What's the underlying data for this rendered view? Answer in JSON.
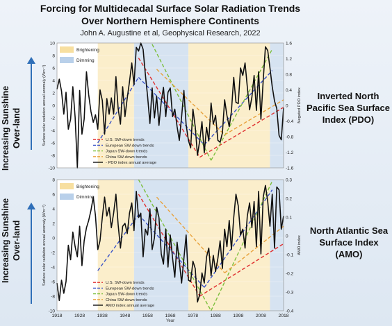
{
  "title_line1": "Forcing for Multidecadal Surface Solar Radiation Trends",
  "title_line2": "Over Northern Hemisphere Continents",
  "subtitle": "John A. Augustine et al, Geophysical Research, 2022",
  "left_label_top": "Increasing Sunshine Over-land",
  "left_label_bottom": "Increasing Sunshine Over-land",
  "right_label_top": [
    "Inverted North",
    "Pacific Sea Surface",
    "Index (PDO)"
  ],
  "right_label_bottom": [
    "North Atlantic Sea",
    "Surface Index",
    "(AMO)"
  ],
  "colors": {
    "brightening": "#fbeecb",
    "dimming": "#d6e3f1",
    "us": "#e03030",
    "europe": "#3a53c8",
    "japan": "#7cbf3c",
    "china": "#e8a23c",
    "index": "#111111"
  },
  "chart_data": [
    {
      "type": "line",
      "name": "pdo-panel",
      "ylabel": "Surface solar radiation annual anomaly (Wm⁻²)",
      "y2label": "Negated PDO index",
      "ylim": [
        -10,
        10
      ],
      "y2lim": [
        -1.6,
        1.6
      ],
      "yticks": [
        "-10",
        "-8",
        "-6",
        "-4",
        "-2",
        "0",
        "2",
        "4",
        "6",
        "8",
        "10"
      ],
      "y2ticks": [
        "-1.6",
        "-1.2",
        "-0.8",
        "-0.4",
        "0",
        "0.4",
        "0.8",
        "1.2",
        "1.6"
      ],
      "shading": [
        {
          "label": "Brightening",
          "from": 1936,
          "to": 1952,
          "kind": "brightening"
        },
        {
          "label": "Dimming",
          "from": 1952,
          "to": 1976,
          "kind": "dimming"
        },
        {
          "label": "",
          "from": 1976,
          "to": 2012,
          "kind": "brightening"
        },
        {
          "label": "",
          "from": 2012,
          "to": 2018,
          "kind": "dimming"
        }
      ],
      "legend": [
        "U.S. SW-down trends",
        "European SW-down trends",
        "Japan SW-down trends",
        "China SW-down trends",
        "- PDO index annual average"
      ],
      "index_series": {
        "x": [
          1918,
          1919,
          1920,
          1921,
          1922,
          1923,
          1924,
          1925,
          1926,
          1927,
          1928,
          1929,
          1930,
          1931,
          1932,
          1933,
          1934,
          1935,
          1936,
          1937,
          1938,
          1939,
          1940,
          1941,
          1942,
          1943,
          1944,
          1945,
          1946,
          1947,
          1948,
          1949,
          1950,
          1951,
          1952,
          1953,
          1954,
          1955,
          1956,
          1957,
          1958,
          1959,
          1960,
          1961,
          1962,
          1963,
          1964,
          1965,
          1966,
          1967,
          1968,
          1969,
          1970,
          1971,
          1972,
          1973,
          1974,
          1975,
          1976,
          1977,
          1978,
          1979,
          1980,
          1981,
          1982,
          1983,
          1984,
          1985,
          1986,
          1987,
          1988,
          1989,
          1990,
          1991,
          1992,
          1993,
          1994,
          1995,
          1996,
          1997,
          1998,
          1999,
          2000,
          2001,
          2002,
          2003,
          2004,
          2005,
          2006,
          2007,
          2008,
          2009,
          2010,
          2011,
          2012,
          2013,
          2014,
          2015,
          2016,
          2017,
          2018
        ],
        "y": [
          2.6,
          4.2,
          2.3,
          -1.4,
          2.1,
          -3.8,
          -2.2,
          3.0,
          -1.9,
          -10.0,
          2.4,
          -4.6,
          -2.2,
          5.4,
          1.7,
          -1.0,
          -2.7,
          -1.5,
          -3.8,
          2.5,
          0.8,
          -4.6,
          1.1,
          -1.4,
          1.2,
          -1.4,
          4.6,
          -0.5,
          -3.0,
          3.0,
          -1.8,
          1.2,
          3.8,
          6.8,
          3.3,
          9.3,
          8.7,
          10.0,
          9.0,
          5.0,
          1.4,
          -2.9,
          2.8,
          -2.0,
          1.5,
          -3.2,
          0.6,
          2.9,
          -1.8,
          2.1,
          2.8,
          -1.8,
          -0.6,
          -3.4,
          -5.6,
          -1.8,
          2.4,
          -3.1,
          -5.6,
          -6.8,
          -0.6,
          -3.4,
          -8.0,
          -5.6,
          -2.6,
          -7.6,
          -3.5,
          -5.7,
          0.4,
          -3.0,
          -1.6,
          -5.6,
          -5.9,
          -4.4,
          0.9,
          -1.6,
          -3.4,
          -0.9,
          4.5,
          0.5,
          0.3,
          6.0,
          4.8,
          6.8,
          3.0,
          -0.7,
          1.3,
          4.8,
          -0.8,
          5.4,
          -2.2,
          4.0,
          9.4,
          8.8,
          6.0,
          3.0,
          0.7,
          -0.5,
          -4.8,
          -5.5,
          -0.4
        ]
      },
      "trend_lines": [
        {
          "series": "us",
          "x": [
            1954,
            1981
          ],
          "y": [
            7.6,
            -8.3
          ]
        },
        {
          "series": "us",
          "x": [
            1981,
            2018
          ],
          "y": [
            -8.3,
            -0.3
          ]
        },
        {
          "series": "europe",
          "x": [
            1936,
            1954
          ],
          "y": [
            -6.0,
            4.5
          ]
        },
        {
          "series": "europe",
          "x": [
            1954,
            1983
          ],
          "y": [
            4.5,
            -6.3
          ]
        },
        {
          "series": "europe",
          "x": [
            1983,
            2013
          ],
          "y": [
            -6.3,
            5.6
          ]
        },
        {
          "series": "japan",
          "x": [
            1960,
            1986
          ],
          "y": [
            9.8,
            -8.8
          ]
        },
        {
          "series": "japan",
          "x": [
            1986,
            2013
          ],
          "y": [
            -8.8,
            9.0
          ]
        },
        {
          "series": "china",
          "x": [
            1962,
            1992
          ],
          "y": [
            5.8,
            -4.7
          ]
        },
        {
          "series": "china",
          "x": [
            1992,
            2018
          ],
          "y": [
            -4.7,
            0.9
          ]
        }
      ]
    },
    {
      "type": "line",
      "name": "amo-panel",
      "ylabel": "Surface solar radiation annual anomaly (Wm⁻²)",
      "y2label": "AMO index",
      "xlabel": "Year",
      "ylim": [
        -10,
        8
      ],
      "y2lim": [
        -0.4,
        0.3
      ],
      "yticks": [
        "-10",
        "-8",
        "-6",
        "-4",
        "-2",
        "0",
        "2",
        "4",
        "6",
        "8"
      ],
      "y2ticks": [
        "-0.4",
        "-0.3",
        "-0.2",
        "-0.1",
        "0",
        "0.1",
        "0.2",
        "0.3"
      ],
      "xticks": [
        1918,
        1928,
        1938,
        1948,
        1958,
        1968,
        1978,
        1988,
        1998,
        2008,
        2018
      ],
      "shading": [
        {
          "label": "Brightening",
          "from": 1936,
          "to": 1952,
          "kind": "brightening"
        },
        {
          "label": "Dimming",
          "from": 1952,
          "to": 1976,
          "kind": "dimming"
        },
        {
          "label": "",
          "from": 1976,
          "to": 2012,
          "kind": "brightening"
        },
        {
          "label": "",
          "from": 2012,
          "to": 2018,
          "kind": "dimming"
        }
      ],
      "legend": [
        "U.S. SW-down trends",
        "European SW-down trends",
        "Japan SW-down trends",
        "China SW-down trends",
        "AMO index annual average"
      ],
      "index_series": {
        "x": [
          1918,
          1919,
          1920,
          1921,
          1922,
          1923,
          1924,
          1925,
          1926,
          1927,
          1928,
          1929,
          1930,
          1931,
          1932,
          1933,
          1934,
          1935,
          1936,
          1937,
          1938,
          1939,
          1940,
          1941,
          1942,
          1943,
          1944,
          1945,
          1946,
          1947,
          1948,
          1949,
          1950,
          1951,
          1952,
          1953,
          1954,
          1955,
          1956,
          1957,
          1958,
          1959,
          1960,
          1961,
          1962,
          1963,
          1964,
          1965,
          1966,
          1967,
          1968,
          1969,
          1970,
          1971,
          1972,
          1973,
          1974,
          1975,
          1976,
          1977,
          1978,
          1979,
          1980,
          1981,
          1982,
          1983,
          1984,
          1985,
          1986,
          1987,
          1988,
          1989,
          1990,
          1991,
          1992,
          1993,
          1994,
          1995,
          1996,
          1997,
          1998,
          1999,
          2000,
          2001,
          2002,
          2003,
          2004,
          2005,
          2006,
          2007,
          2008,
          2009,
          2010,
          2011,
          2012,
          2013,
          2014,
          2015,
          2016,
          2017,
          2018
        ],
        "y": [
          -6.2,
          -8.6,
          -5.8,
          -7.6,
          -6.0,
          -1.0,
          -3.0,
          0.8,
          -1.2,
          -2.6,
          1.6,
          -3.8,
          -0.4,
          1.4,
          2.4,
          3.8,
          5.6,
          3.0,
          -1.6,
          -0.4,
          2.8,
          5.6,
          3.0,
          4.2,
          1.4,
          3.4,
          6.0,
          1.8,
          -1.4,
          1.6,
          2.0,
          0.6,
          3.4,
          4.8,
          1.0,
          6.4,
          2.8,
          3.4,
          -2.6,
          1.2,
          0.4,
          4.0,
          -1.6,
          0.0,
          4.2,
          2.8,
          -2.2,
          -3.6,
          1.2,
          -4.0,
          0.4,
          -2.8,
          -5.4,
          -0.6,
          -3.2,
          -6.2,
          -2.8,
          0.4,
          -5.8,
          -6.0,
          -3.2,
          -4.2,
          -8.8,
          -7.8,
          -4.8,
          -6.2,
          -2.6,
          -1.4,
          -5.2,
          -2.4,
          -4.6,
          -2.8,
          -0.4,
          -4.2,
          1.2,
          -1.2,
          2.4,
          -1.6,
          2.8,
          6.0,
          4.4,
          0.4,
          1.2,
          -1.4,
          3.0,
          4.8,
          1.4,
          5.0,
          -1.2,
          6.4,
          -2.2,
          5.6,
          7.2,
          5.0,
          1.6,
          6.0,
          -1.4,
          7.0,
          6.6,
          1.2,
          3.0
        ]
      },
      "trend_lines": [
        {
          "series": "us",
          "x": [
            1954,
            1981
          ],
          "y": [
            6.0,
            -8.0
          ]
        },
        {
          "series": "us",
          "x": [
            1981,
            2018
          ],
          "y": [
            -8.0,
            -0.8
          ]
        },
        {
          "series": "europe",
          "x": [
            1936,
            1954
          ],
          "y": [
            -4.5,
            3.2
          ]
        },
        {
          "series": "europe",
          "x": [
            1954,
            1983
          ],
          "y": [
            3.2,
            -6.8
          ]
        },
        {
          "series": "europe",
          "x": [
            1983,
            2013
          ],
          "y": [
            -6.8,
            6.6
          ]
        },
        {
          "series": "japan",
          "x": [
            1954,
            1986
          ],
          "y": [
            8.0,
            -10.0
          ]
        },
        {
          "series": "japan",
          "x": [
            1986,
            2013
          ],
          "y": [
            -10.0,
            7.8
          ]
        },
        {
          "series": "china",
          "x": [
            1962,
            1992
          ],
          "y": [
            5.6,
            -4.8
          ]
        },
        {
          "series": "china",
          "x": [
            1992,
            2018
          ],
          "y": [
            -4.8,
            1.6
          ]
        }
      ]
    }
  ]
}
